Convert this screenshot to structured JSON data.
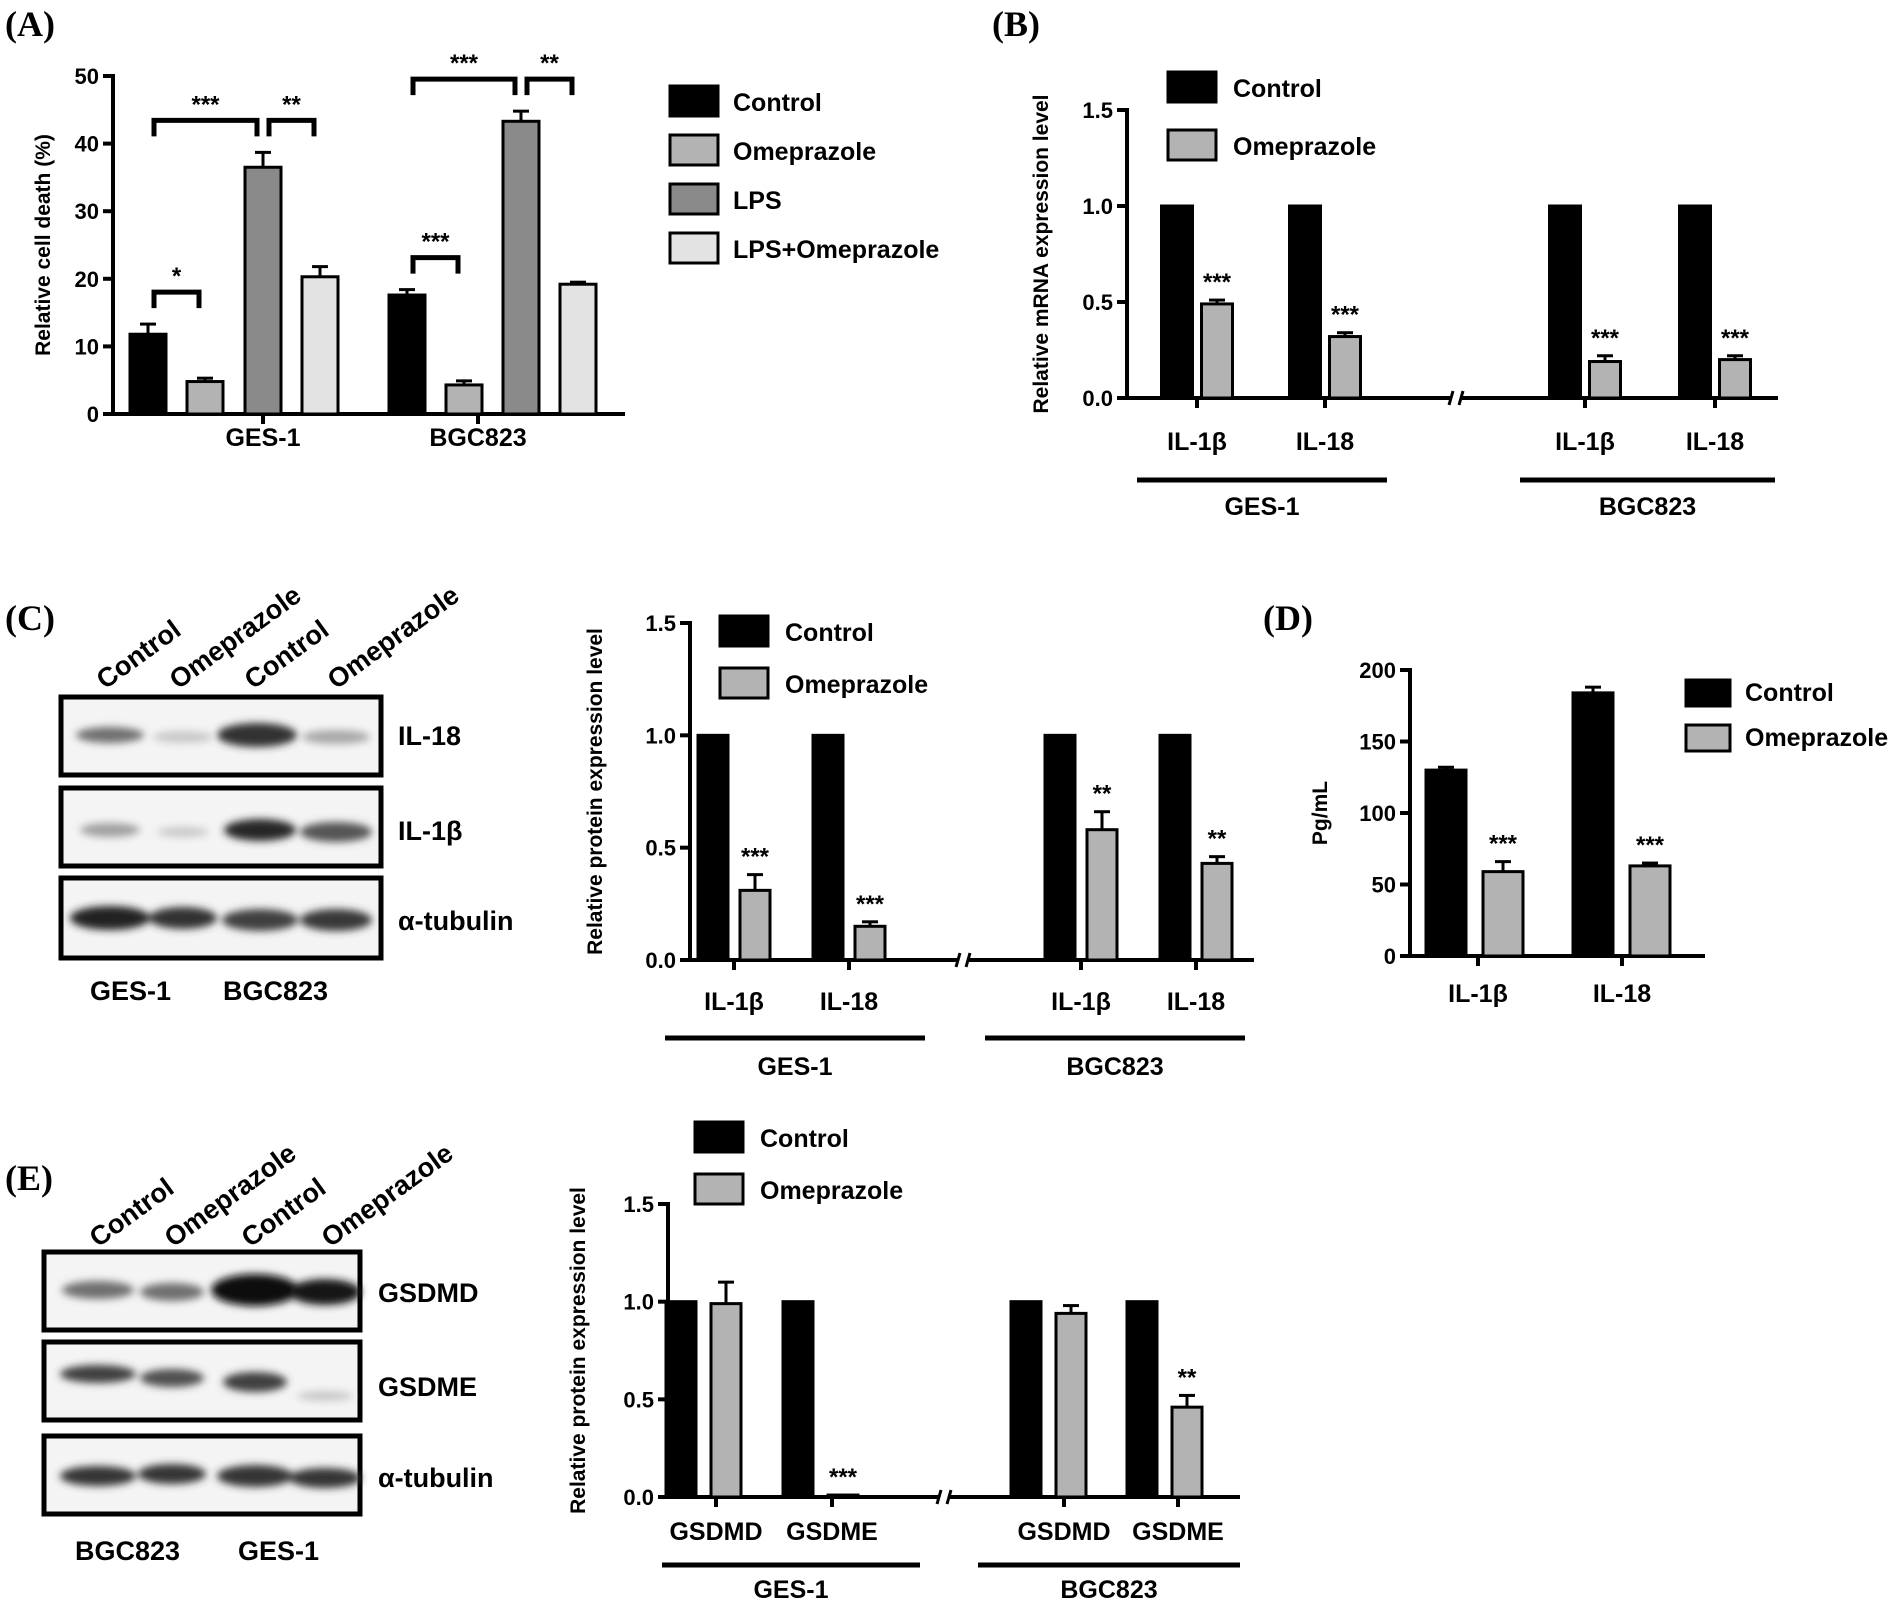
{
  "panels": {
    "A": "(A)",
    "B": "(B)",
    "C": "(C)",
    "D": "(D)",
    "E": "(E)"
  },
  "colors": {
    "control": "#000000",
    "omeprazole": "#b3b3b3",
    "lps": "#8a8a8a",
    "lps_omeprazole": "#e3e3e3"
  },
  "chart_data": [
    {
      "id": "A",
      "type": "bar",
      "title": "",
      "ylabel": "Relative cell death (%)",
      "ylim": [
        0,
        50
      ],
      "yticks": [
        0,
        10,
        20,
        30,
        40,
        50
      ],
      "categories": [
        "GES-1",
        "BGC823"
      ],
      "series": [
        {
          "name": "Control",
          "color": "#000000",
          "values": [
            11.8,
            17.6
          ],
          "errors": [
            1.5,
            0.8
          ]
        },
        {
          "name": "Omeprazole",
          "color": "#b3b3b3",
          "values": [
            4.8,
            4.3
          ],
          "errors": [
            0.5,
            0.6
          ]
        },
        {
          "name": "LPS",
          "color": "#8a8a8a",
          "values": [
            36.5,
            43.3
          ],
          "errors": [
            2.2,
            1.5
          ]
        },
        {
          "name": "LPS+Omeprazole",
          "color": "#e3e3e3",
          "values": [
            20.3,
            19.2
          ],
          "errors": [
            1.5,
            0.3
          ]
        }
      ],
      "annotations": [
        {
          "text": "*",
          "group": 0,
          "from": 0,
          "to": 1
        },
        {
          "text": "***",
          "group": 0,
          "from": 0,
          "to": 2
        },
        {
          "text": "**",
          "group": 0,
          "from": 2,
          "to": 3
        },
        {
          "text": "***",
          "group": 1,
          "from": 0,
          "to": 1
        },
        {
          "text": "***",
          "group": 1,
          "from": 0,
          "to": 2
        },
        {
          "text": "**",
          "group": 1,
          "from": 2,
          "to": 3
        }
      ]
    },
    {
      "id": "B",
      "type": "bar",
      "title": "",
      "ylabel": "Relative mRNA expression level",
      "ylim": [
        0,
        1.5
      ],
      "yticks": [
        "0.0",
        "0.5",
        "1.0",
        "1.5"
      ],
      "categories": [
        "IL-1β",
        "IL-18",
        "IL-1β",
        "IL-18"
      ],
      "groups": [
        "GES-1",
        "BGC823"
      ],
      "series": [
        {
          "name": "Control",
          "color": "#000000",
          "values": [
            1.0,
            1.0,
            1.0,
            1.0
          ],
          "errors": [
            0,
            0,
            0,
            0
          ]
        },
        {
          "name": "Omeprazole",
          "color": "#b3b3b3",
          "values": [
            0.49,
            0.32,
            0.19,
            0.2
          ],
          "errors": [
            0.02,
            0.02,
            0.03,
            0.02
          ]
        }
      ],
      "significance": [
        "***",
        "***",
        "***",
        "***"
      ]
    },
    {
      "id": "C",
      "type": "bar",
      "title": "",
      "ylabel": "Relative protein expression level",
      "ylim": [
        0,
        1.5
      ],
      "yticks": [
        "0.0",
        "0.5",
        "1.0",
        "1.5"
      ],
      "categories": [
        "IL-1β",
        "IL-18",
        "IL-1β",
        "IL-18"
      ],
      "groups": [
        "GES-1",
        "BGC823"
      ],
      "series": [
        {
          "name": "Control",
          "color": "#000000",
          "values": [
            1.0,
            1.0,
            1.0,
            1.0
          ],
          "errors": [
            0,
            0,
            0,
            0
          ]
        },
        {
          "name": "Omeprazole",
          "color": "#b3b3b3",
          "values": [
            0.31,
            0.15,
            0.58,
            0.43
          ],
          "errors": [
            0.07,
            0.02,
            0.08,
            0.03
          ]
        }
      ],
      "significance": [
        "***",
        "***",
        "**",
        "**"
      ]
    },
    {
      "id": "D",
      "type": "bar",
      "title": "",
      "ylabel": "Pg/mL",
      "ylim": [
        0,
        200
      ],
      "yticks": [
        0,
        50,
        100,
        150,
        200
      ],
      "categories": [
        "IL-1β",
        "IL-18"
      ],
      "series": [
        {
          "name": "Control",
          "color": "#000000",
          "values": [
            130,
            184
          ],
          "errors": [
            2,
            4
          ]
        },
        {
          "name": "Omeprazole",
          "color": "#b3b3b3",
          "values": [
            59,
            63
          ],
          "errors": [
            7,
            2
          ]
        }
      ],
      "significance": [
        "***",
        "***"
      ]
    },
    {
      "id": "E",
      "type": "bar",
      "title": "",
      "ylabel": "Relative protein expression level",
      "ylim": [
        0,
        1.5
      ],
      "yticks": [
        "0.0",
        "0.5",
        "1.0",
        "1.5"
      ],
      "categories": [
        "GSDMD",
        "GSDME",
        "GSDMD",
        "GSDME"
      ],
      "groups": [
        "GES-1",
        "BGC823"
      ],
      "series": [
        {
          "name": "Control",
          "color": "#000000",
          "values": [
            1.0,
            1.0,
            1.0,
            1.0
          ],
          "errors": [
            0,
            0,
            0,
            0
          ]
        },
        {
          "name": "Omeprazole",
          "color": "#b3b3b3",
          "values": [
            0.99,
            0.01,
            0.94,
            0.46
          ],
          "errors": [
            0.11,
            0,
            0.04,
            0.06
          ]
        }
      ],
      "significance": [
        "",
        "***",
        "",
        "**"
      ]
    }
  ],
  "blots": {
    "C": {
      "lanes": [
        "Control",
        "Omeprazole",
        "Control",
        "Omeprazole"
      ],
      "rows": [
        "IL-18",
        "IL-1β",
        "α-tubulin"
      ],
      "cells": [
        "GES-1",
        "BGC823"
      ]
    },
    "E": {
      "lanes": [
        "Control",
        "Omeprazole",
        "Control",
        "Omeprazole"
      ],
      "rows": [
        "GSDMD",
        "GSDME",
        "α-tubulin"
      ],
      "cells": [
        "BGC823",
        "GES-1"
      ]
    }
  }
}
